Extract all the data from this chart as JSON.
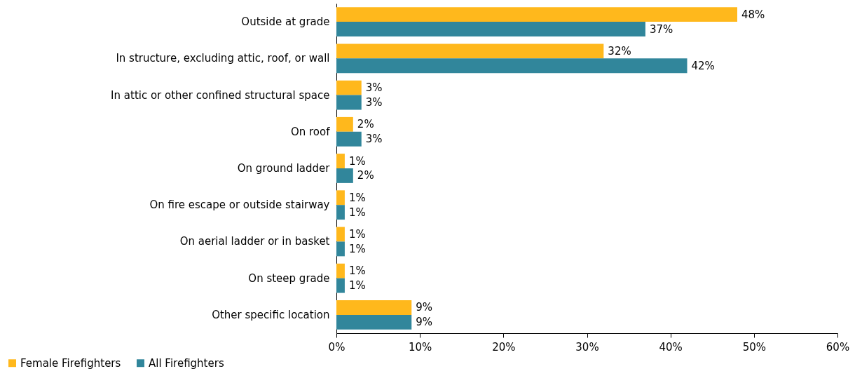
{
  "chart_data": {
    "type": "bar",
    "orientation": "horizontal",
    "categories": [
      "Outside at grade",
      "In structure, excluding attic, roof, or wall",
      "In attic or other confined structural space",
      "On roof",
      "On ground ladder",
      "On fire escape or outside stairway",
      "On aerial ladder or in basket",
      "On steep grade",
      "Other specific location"
    ],
    "series": [
      {
        "name": "Female Firefighters",
        "color": "#ffb81c",
        "values": [
          48,
          32,
          3,
          2,
          1,
          1,
          1,
          1,
          9
        ],
        "value_labels": [
          "48%",
          "32%",
          "3%",
          "2%",
          "1%",
          "1%",
          "1%",
          "1%",
          "9%"
        ]
      },
      {
        "name": "All Firefighters",
        "color": "#31869b",
        "values": [
          37,
          42,
          3,
          3,
          2,
          1,
          1,
          1,
          9
        ],
        "value_labels": [
          "37%",
          "42%",
          "3%",
          "3%",
          "2%",
          "1%",
          "1%",
          "1%",
          "9%"
        ]
      }
    ],
    "xlim": [
      0,
      60
    ],
    "xticks": [
      {
        "value": 0,
        "label": "0%"
      },
      {
        "value": 10,
        "label": "10%"
      },
      {
        "value": 20,
        "label": "20%"
      },
      {
        "value": 30,
        "label": "30%"
      },
      {
        "value": 40,
        "label": "40%"
      },
      {
        "value": 50,
        "label": "50%"
      },
      {
        "value": 60,
        "label": "60%"
      }
    ],
    "legend": "bottom left"
  }
}
